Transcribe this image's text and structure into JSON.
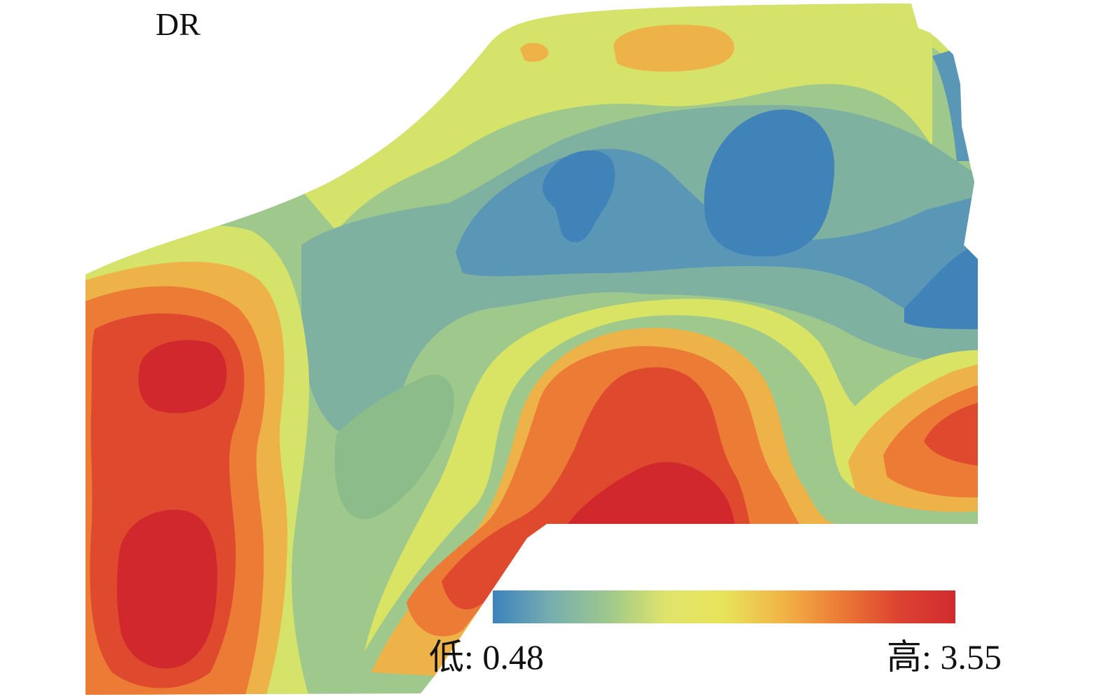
{
  "map": {
    "title": "DR",
    "variable": "DR",
    "palette": {
      "low": "#3f83b8",
      "mid_low": "#8dbc8b",
      "mid": "#e4e65a",
      "mid_high": "#ef8a3a",
      "high": "#d0282c"
    }
  },
  "legend": {
    "low_label": "低: 0.48",
    "high_label": "高: 3.55",
    "min_value": 0.48,
    "max_value": 3.55,
    "gradient_stops": [
      "#3c82bd",
      "#77aeb0",
      "#9ec88c",
      "#dfe46a",
      "#e8e35a",
      "#f1b547",
      "#ec7b36",
      "#dd4430",
      "#d22a2f"
    ]
  }
}
